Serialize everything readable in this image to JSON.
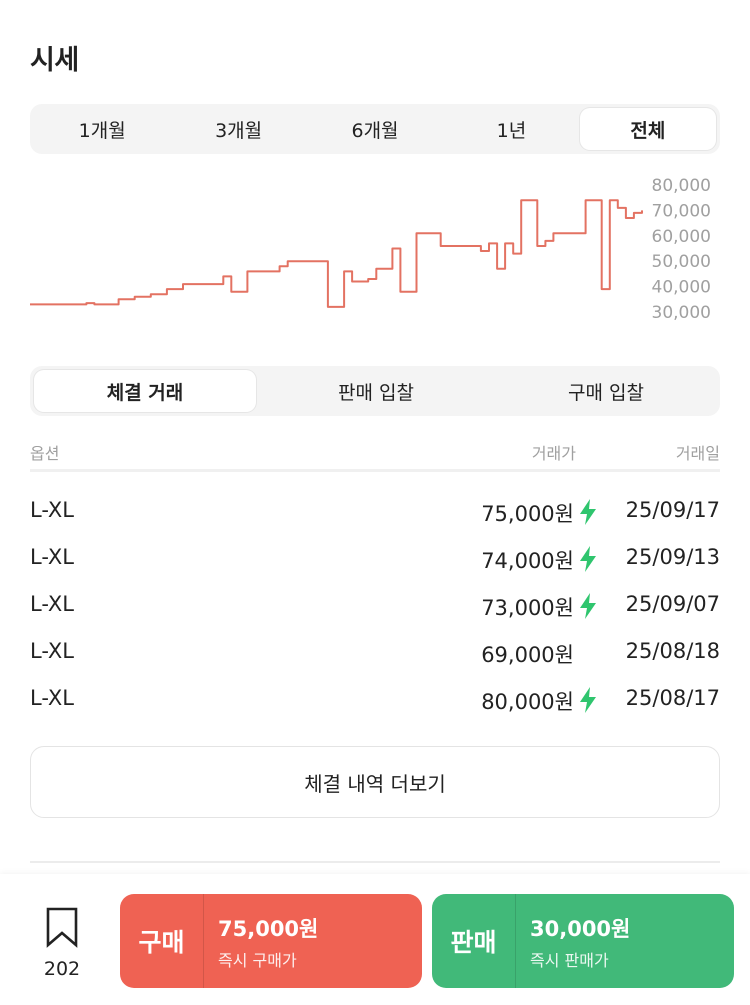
{
  "section": {
    "title": "시세"
  },
  "period_tabs": [
    {
      "label": "1개월",
      "active": false
    },
    {
      "label": "3개월",
      "active": false
    },
    {
      "label": "6개월",
      "active": false
    },
    {
      "label": "1년",
      "active": false
    },
    {
      "label": "전체",
      "active": true
    }
  ],
  "chart_data": {
    "type": "line",
    "color": "#e37262",
    "y_ticks": [
      "80,000",
      "70,000",
      "60,000",
      "50,000",
      "40,000",
      "30,000"
    ],
    "ylim": [
      30000,
      80000
    ],
    "grid": false,
    "legend": "none",
    "values": [
      33000,
      33000,
      33000,
      33000,
      33000,
      33000,
      33000,
      33500,
      33000,
      33000,
      33000,
      35000,
      35000,
      36000,
      36000,
      37000,
      37000,
      39000,
      39000,
      41000,
      41000,
      41000,
      41000,
      41000,
      44000,
      38000,
      38000,
      46000,
      46000,
      46000,
      46000,
      48000,
      50000,
      50000,
      50000,
      50000,
      50000,
      32000,
      32000,
      46000,
      42000,
      42000,
      43000,
      47000,
      47000,
      55000,
      38000,
      38000,
      61000,
      61000,
      61000,
      56000,
      56000,
      56000,
      56000,
      56000,
      54000,
      57000,
      47000,
      57000,
      53000,
      74000,
      74000,
      56000,
      58000,
      61000,
      61000,
      61000,
      61000,
      74000,
      74000,
      39000,
      74000,
      71000,
      67000,
      69000,
      70000
    ]
  },
  "trade_tabs": [
    {
      "label": "체결 거래",
      "active": true
    },
    {
      "label": "판매 입찰",
      "active": false
    },
    {
      "label": "구매 입찰",
      "active": false
    }
  ],
  "table": {
    "headers": {
      "option": "옵션",
      "price": "거래가",
      "date": "거래일"
    },
    "rows": [
      {
        "option": "L-XL",
        "price": "75,000원",
        "quick": true,
        "date": "25/09/17"
      },
      {
        "option": "L-XL",
        "price": "74,000원",
        "quick": true,
        "date": "25/09/13"
      },
      {
        "option": "L-XL",
        "price": "73,000원",
        "quick": true,
        "date": "25/09/07"
      },
      {
        "option": "L-XL",
        "price": "69,000원",
        "quick": false,
        "date": "25/08/18"
      },
      {
        "option": "L-XL",
        "price": "80,000원",
        "quick": true,
        "date": "25/08/17"
      }
    ]
  },
  "more_button": {
    "label": "체결 내역 더보기"
  },
  "bottom_bar": {
    "wish_count": "202",
    "buy": {
      "label": "구매",
      "amount": "75,000원",
      "sub": "즉시 구매가",
      "color": "#ef6253"
    },
    "sell": {
      "label": "판매",
      "amount": "30,000원",
      "sub": "즉시 판매가",
      "color": "#41b979"
    }
  },
  "icons": {
    "quick_delivery": "lightning-bolt-icon",
    "wishlist": "bookmark-icon"
  },
  "colors": {
    "quick_bolt": "#2fc56e",
    "chart_line": "#e37262"
  }
}
